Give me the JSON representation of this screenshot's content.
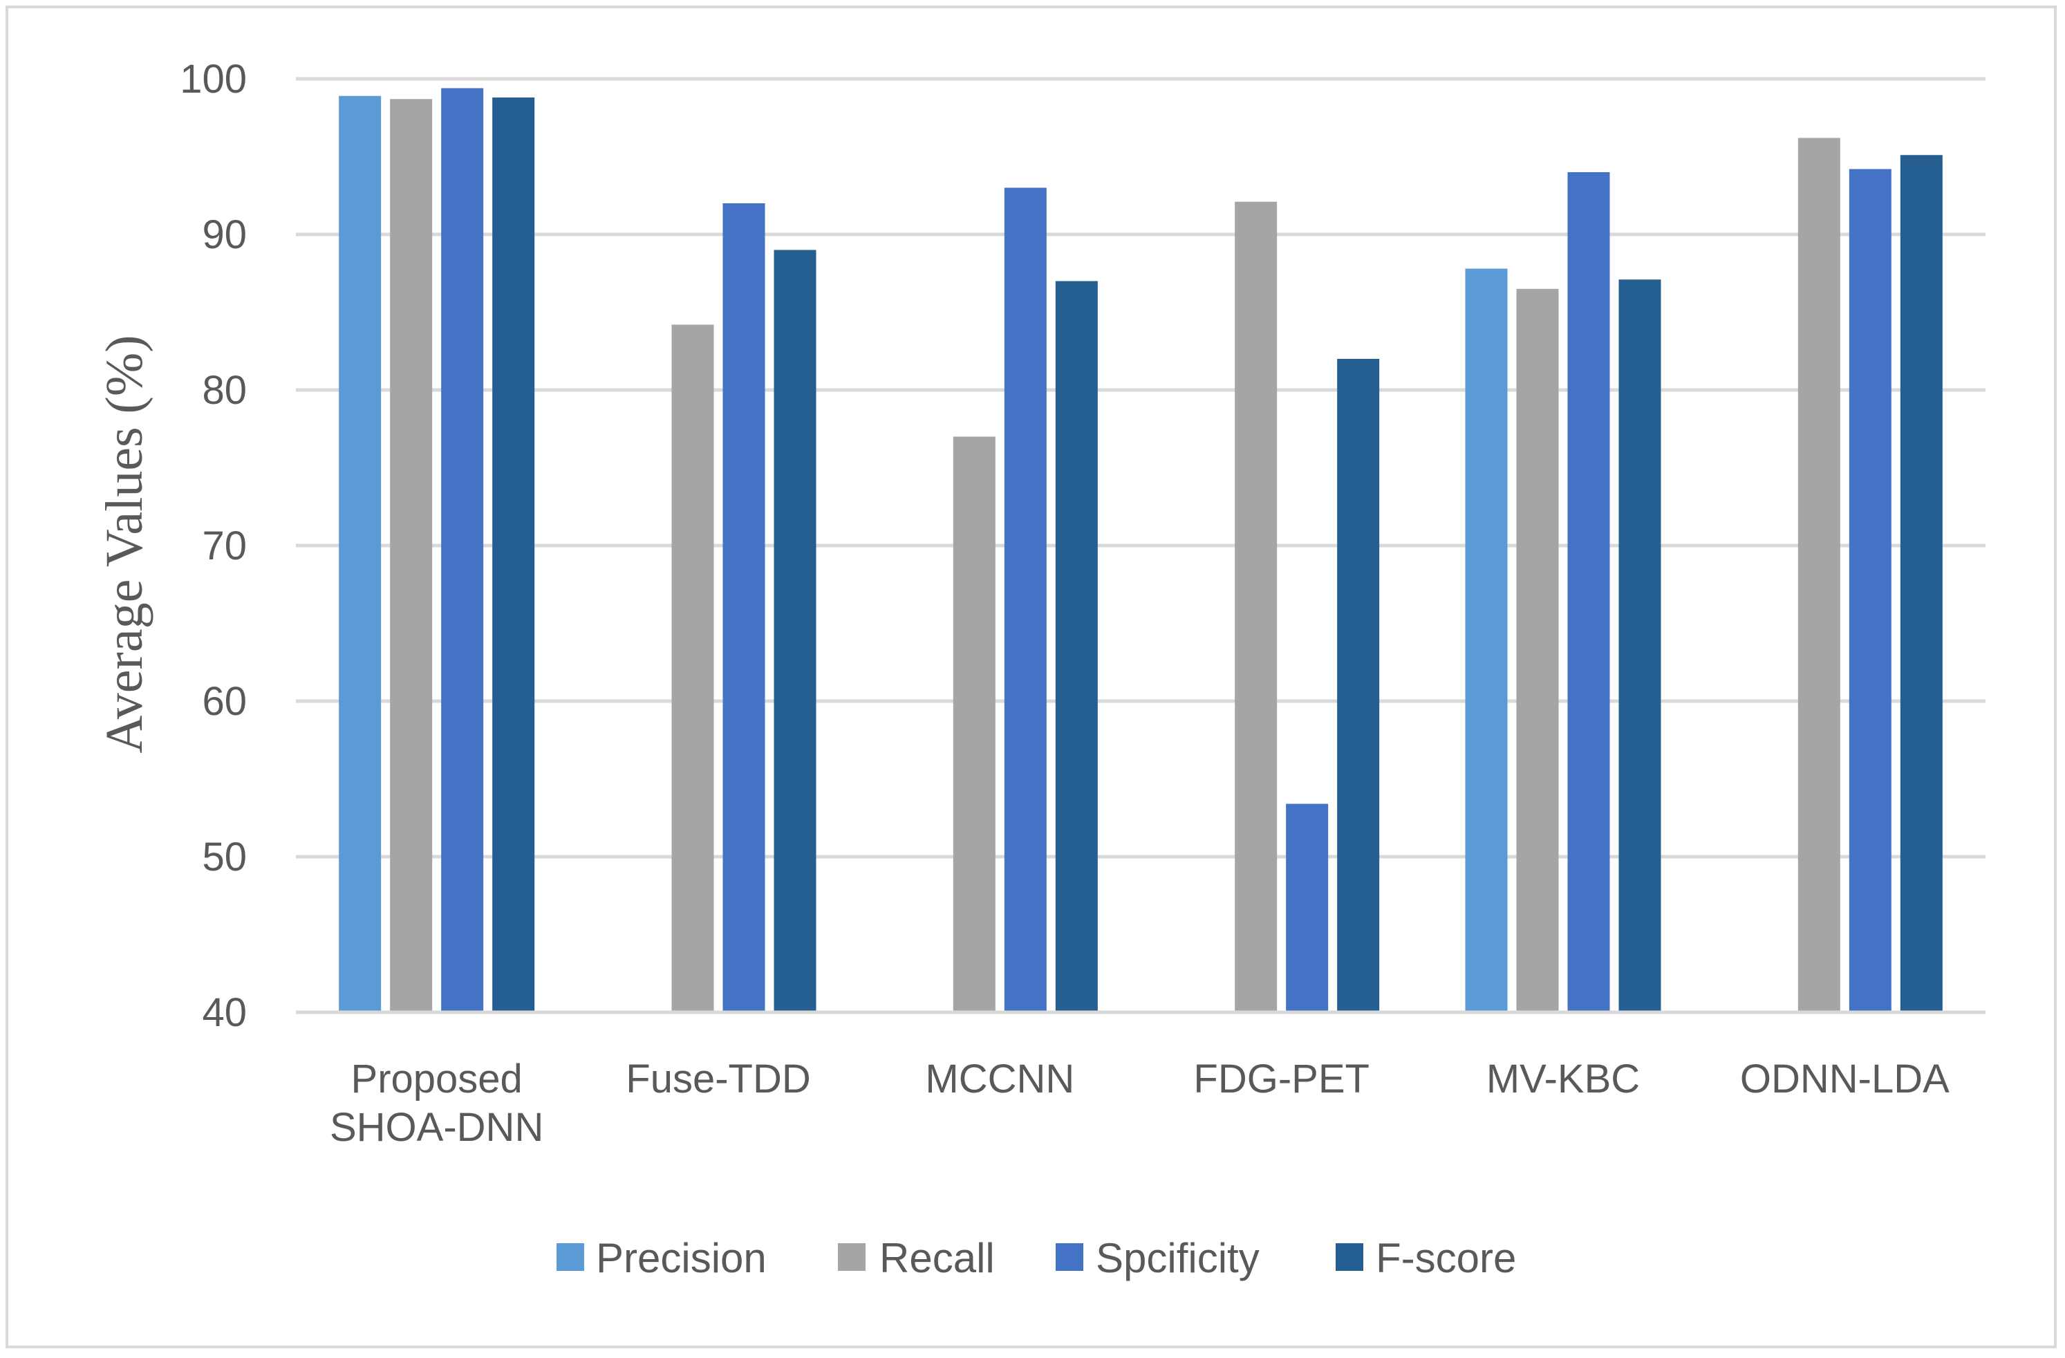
{
  "chart_data": {
    "type": "bar",
    "title": "",
    "xlabel": "",
    "ylabel": "Average Values (%)",
    "ylim": [
      40,
      100
    ],
    "yticks": [
      40,
      50,
      60,
      70,
      80,
      90,
      100
    ],
    "grid": true,
    "legend_position": "bottom",
    "categories": [
      [
        "Proposed",
        "SHOA-DNN"
      ],
      [
        "Fuse-TDD"
      ],
      [
        "MCCNN"
      ],
      [
        "FDG-PET"
      ],
      [
        "MV-KBC"
      ],
      [
        "ODNN-LDA"
      ]
    ],
    "series": [
      {
        "name": "Precision",
        "color": "#5b9bd5",
        "values": [
          98.9,
          null,
          null,
          null,
          87.8,
          null
        ]
      },
      {
        "name": "Recall",
        "color": "#a5a5a5",
        "values": [
          98.7,
          84.2,
          77.0,
          92.1,
          86.5,
          96.2
        ]
      },
      {
        "name": "Spcificity",
        "color": "#4472c4",
        "values": [
          99.4,
          92.0,
          93.0,
          53.4,
          94.0,
          94.2
        ]
      },
      {
        "name": "F-score",
        "color": "#255e91",
        "values": [
          98.8,
          89.0,
          87.0,
          82.0,
          87.1,
          95.1
        ]
      }
    ]
  }
}
